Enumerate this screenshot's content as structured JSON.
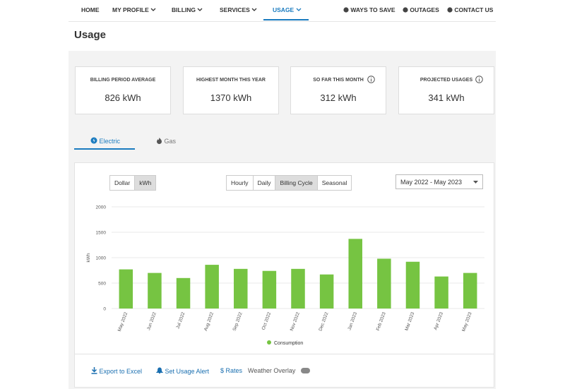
{
  "nav": {
    "items": [
      "HOME",
      "MY PROFILE",
      "BILLING",
      "SERVICES",
      "USAGE"
    ],
    "right": [
      "WAYS TO SAVE",
      "OUTAGES",
      "CONTACT US"
    ]
  },
  "page_title": "Usage",
  "cards": [
    {
      "label": "BILLING PERIOD AVERAGE",
      "value": "826 kWh"
    },
    {
      "label": "HIGHEST MONTH THIS YEAR",
      "value": "1370 kWh"
    },
    {
      "label": "SO FAR THIS MONTH",
      "value": "312 kWh"
    },
    {
      "label": "PROJECTED USAGES",
      "value": "341 kWh"
    }
  ],
  "energy_tabs": [
    "Electric",
    "Gas"
  ],
  "unit_toggle": [
    "Dollar",
    "kWh"
  ],
  "period_toggle": [
    "Hourly",
    "Daily",
    "Billing Cycle",
    "Seasonal"
  ],
  "date_range": "May 2022 - May 2023",
  "chart_data": {
    "type": "bar",
    "y_label": "kWh",
    "categories": [
      "May 2022",
      "Jun 2022",
      "Jul 2022",
      "Aug 2022",
      "Sep 2022",
      "Oct 2022",
      "Nov 2022",
      "Dec 2022",
      "Jan 2023",
      "Feb 2023",
      "Mar 2023",
      "Apr 2023",
      "May 2023"
    ],
    "series": [
      {
        "name": "Consumption",
        "color": "#76c442",
        "values": [
          770,
          700,
          600,
          860,
          780,
          740,
          780,
          670,
          1370,
          980,
          920,
          630,
          700
        ]
      }
    ],
    "ylim": [
      0,
      2000
    ],
    "yticks": [
      0,
      500,
      1000,
      1500,
      2000
    ],
    "grid": true
  },
  "actions": [
    "Export to Excel",
    "Set Usage Alert",
    "$ Rates",
    "Weather Overlay"
  ]
}
